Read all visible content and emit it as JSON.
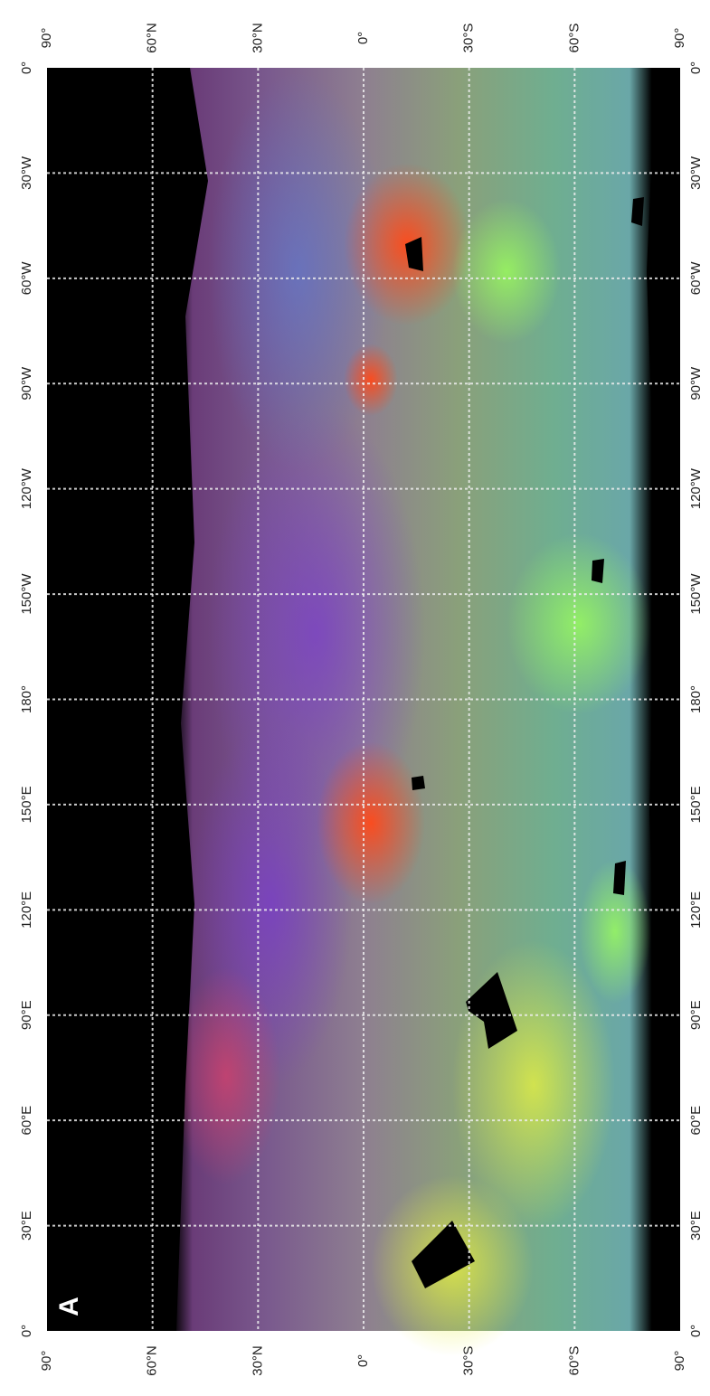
{
  "panel_label": "A",
  "latitude_labels": [
    "90°",
    "60°N",
    "30°N",
    "0°",
    "30°S",
    "60°S",
    "90°"
  ],
  "longitude_labels": [
    "0°",
    "30°W",
    "60°W",
    "90°W",
    "120°W",
    "150°W",
    "180°",
    "150°E",
    "120°E",
    "90°E",
    "60°E",
    "30°E",
    "0°"
  ]
}
